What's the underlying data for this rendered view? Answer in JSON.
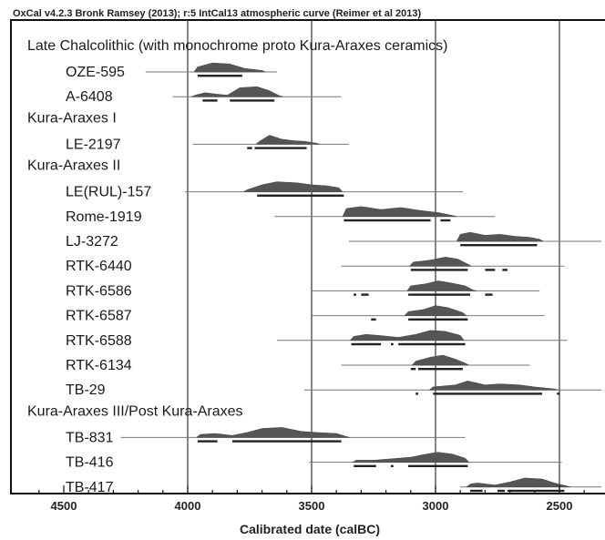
{
  "chart_data": {
    "type": "range",
    "header": "OxCal v4.2.3 Bronk Ramsey (2013); r:5 IntCal13 atmospheric curve (Reimer et al 2013)",
    "xlabel": "Calibrated date (calBC)",
    "x_ticks": [
      4500,
      4000,
      3500,
      3000,
      2500
    ],
    "xlim": [
      4640,
      2330
    ],
    "x_reversed": true,
    "grid_x": [
      4000,
      3500,
      3000,
      2500
    ],
    "groups": [
      {
        "label": "Late Chalcolithic (with monochrome proto Kura-Araxes ceramics)",
        "samples": [
          {
            "name": "OZE-595",
            "line": [
              4170,
              3640
            ],
            "ranges": [
              [
                3960,
                3780
              ]
            ],
            "peaks": [
              [
                3960,
                0.5
              ],
              [
                3900,
                0.9
              ],
              [
                3830,
                0.8
              ],
              [
                3770,
                0.35
              ],
              [
                3700,
                0.15
              ]
            ]
          },
          {
            "name": "A-6408",
            "line": [
              4060,
              3380
            ],
            "ranges": [
              [
                3940,
                3880
              ],
              [
                3830,
                3650
              ]
            ],
            "peaks": [
              [
                3970,
                0.15
              ],
              [
                3930,
                0.4
              ],
              [
                3880,
                0.25
              ],
              [
                3840,
                0.15
              ],
              [
                3790,
                0.9
              ],
              [
                3720,
                1.0
              ],
              [
                3670,
                0.6
              ],
              [
                3630,
                0.1
              ]
            ]
          }
        ]
      },
      {
        "label": "Kura-Araxes I",
        "samples": [
          {
            "name": "LE-2197",
            "line": [
              3980,
              3350
            ],
            "ranges": [
              [
                3760,
                3740
              ],
              [
                3730,
                3520
              ]
            ],
            "peaks": [
              [
                3710,
                0.3
              ],
              [
                3670,
                0.9
              ],
              [
                3620,
                0.5
              ],
              [
                3570,
                0.35
              ],
              [
                3530,
                0.3
              ],
              [
                3480,
                0.1
              ]
            ]
          }
        ]
      },
      {
        "label": "Kura-Araxes II",
        "samples": [
          {
            "name": "LE(RUL)-157",
            "line": [
              4010,
              2890
            ],
            "ranges": [
              [
                3720,
                3370
              ]
            ],
            "peaks": [
              [
                3760,
                0.2
              ],
              [
                3700,
                0.7
              ],
              [
                3640,
                1.0
              ],
              [
                3560,
                0.9
              ],
              [
                3500,
                0.7
              ],
              [
                3440,
                0.6
              ],
              [
                3390,
                0.4
              ]
            ]
          },
          {
            "name": "Rome-1919",
            "line": [
              3650,
              2760
            ],
            "ranges": [
              [
                3370,
                3020
              ],
              [
                2980,
                2940
              ]
            ],
            "peaks": [
              [
                3360,
                0.8
              ],
              [
                3300,
                1.0
              ],
              [
                3220,
                0.7
              ],
              [
                3140,
                0.9
              ],
              [
                3060,
                0.6
              ],
              [
                2990,
                0.4
              ],
              [
                2930,
                0.1
              ]
            ]
          },
          {
            "name": "LJ-3272",
            "line": [
              3350,
              2330
            ],
            "ranges": [
              [
                2900,
                2590
              ]
            ],
            "peaks": [
              [
                2900,
                0.7
              ],
              [
                2860,
                0.9
              ],
              [
                2800,
                0.6
              ],
              [
                2740,
                0.7
              ],
              [
                2680,
                0.5
              ],
              [
                2620,
                0.4
              ],
              [
                2580,
                0.2
              ]
            ]
          },
          {
            "name": "RTK-6440",
            "line": [
              3380,
              2480
            ],
            "ranges": [
              [
                3100,
                2870
              ],
              [
                2800,
                2760
              ],
              [
                2730,
                2710
              ]
            ],
            "peaks": [
              [
                3090,
                0.4
              ],
              [
                3020,
                0.6
              ],
              [
                2960,
                0.9
              ],
              [
                2910,
                0.7
              ],
              [
                2870,
                0.2
              ]
            ]
          },
          {
            "name": "RTK-6586",
            "line": [
              3500,
              2580
            ],
            "ranges": [
              [
                3330,
                3320
              ],
              [
                3300,
                3270
              ],
              [
                3110,
                2860
              ],
              [
                2800,
                2770
              ]
            ],
            "peaks": [
              [
                3100,
                0.5
              ],
              [
                3040,
                0.7
              ],
              [
                2990,
                1.0
              ],
              [
                2940,
                0.8
              ],
              [
                2880,
                0.5
              ],
              [
                2850,
                0.1
              ]
            ]
          },
          {
            "name": "RTK-6587",
            "line": [
              3500,
              2560
            ],
            "ranges": [
              [
                3260,
                3240
              ],
              [
                3110,
                2870
              ]
            ],
            "peaks": [
              [
                3110,
                0.4
              ],
              [
                3050,
                0.6
              ],
              [
                3000,
                1.0
              ],
              [
                2950,
                0.8
              ],
              [
                2890,
                0.3
              ]
            ]
          },
          {
            "name": "RTK-6588",
            "line": [
              3640,
              2470
            ],
            "ranges": [
              [
                3340,
                3220
              ],
              [
                3180,
                3170
              ],
              [
                3150,
                2880
              ]
            ],
            "peaks": [
              [
                3330,
                0.4
              ],
              [
                3280,
                0.6
              ],
              [
                3230,
                0.5
              ],
              [
                3150,
                0.3
              ],
              [
                3080,
                0.6
              ],
              [
                3020,
                1.0
              ],
              [
                2960,
                0.9
              ],
              [
                2900,
                0.5
              ]
            ]
          },
          {
            "name": "RTK-6134",
            "line": [
              3380,
              2620
            ],
            "ranges": [
              [
                3100,
                3080
              ],
              [
                3070,
                2890
              ]
            ],
            "peaks": [
              [
                3080,
                0.4
              ],
              [
                3020,
                0.8
              ],
              [
                2970,
                1.0
              ],
              [
                2920,
                0.6
              ],
              [
                2880,
                0.2
              ]
            ]
          },
          {
            "name": "TB-29",
            "line": [
              3530,
              2330
            ],
            "ranges": [
              [
                3080,
                3070
              ],
              [
                3010,
                2570
              ],
              [
                2510,
                2500
              ]
            ],
            "peaks": [
              [
                3010,
                0.3
              ],
              [
                2920,
                0.5
              ],
              [
                2870,
                0.9
              ],
              [
                2800,
                0.5
              ],
              [
                2740,
                0.6
              ],
              [
                2660,
                0.5
              ],
              [
                2600,
                0.3
              ],
              [
                2520,
                0.1
              ]
            ]
          }
        ]
      },
      {
        "label": "Kura-Araxes III/Post Kura-Araxes",
        "samples": [
          {
            "name": "TB-831",
            "line": [
              4270,
              2880
            ],
            "ranges": [
              [
                3960,
                3880
              ],
              [
                3820,
                3380
              ]
            ],
            "peaks": [
              [
                3950,
                0.3
              ],
              [
                3890,
                0.4
              ],
              [
                3820,
                0.2
              ],
              [
                3760,
                0.5
              ],
              [
                3700,
                0.9
              ],
              [
                3620,
                1.0
              ],
              [
                3540,
                0.6
              ],
              [
                3480,
                0.5
              ],
              [
                3400,
                0.4
              ],
              [
                3360,
                0.1
              ]
            ]
          },
          {
            "name": "TB-416",
            "line": [
              3510,
              2490
            ],
            "ranges": [
              [
                3330,
                3240
              ],
              [
                3180,
                3170
              ],
              [
                3110,
                2870
              ]
            ],
            "peaks": [
              [
                3320,
                0.2
              ],
              [
                3250,
                0.2
              ],
              [
                3100,
                0.5
              ],
              [
                3040,
                0.8
              ],
              [
                2990,
                1.0
              ],
              [
                2930,
                0.8
              ],
              [
                2880,
                0.4
              ]
            ]
          },
          {
            "name": "TB-417",
            "line": [
              2900,
              2330
            ],
            "ranges": [
              [
                2860,
                2810
              ],
              [
                2750,
                2720
              ],
              [
                2710,
                2480
              ]
            ],
            "peaks": [
              [
                2860,
                0.3
              ],
              [
                2830,
                0.4
              ],
              [
                2760,
                0.2
              ],
              [
                2700,
                0.5
              ],
              [
                2640,
                0.9
              ],
              [
                2570,
                0.8
              ],
              [
                2520,
                0.4
              ],
              [
                2470,
                0.1
              ]
            ]
          }
        ]
      }
    ]
  }
}
